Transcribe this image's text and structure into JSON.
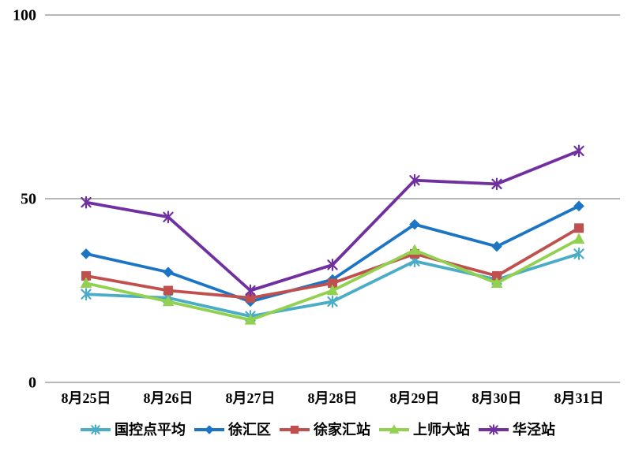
{
  "figure_title": "",
  "axis": {
    "ytick_labels": [
      "0",
      "50",
      "100"
    ],
    "grid_color": "#8c8c8c",
    "text_color": "#000000"
  },
  "chart_data": {
    "type": "line",
    "title": "",
    "xlabel": "",
    "ylabel": "",
    "ylim": [
      0,
      100
    ],
    "yticks": [
      0,
      50,
      100
    ],
    "grid": "horizontal-major",
    "legend_position": "bottom",
    "categories": [
      "8月25日",
      "8月26日",
      "8月27日",
      "8月28日",
      "8月29日",
      "8月30日",
      "8月31日"
    ],
    "series": [
      {
        "name": "国控点平均",
        "color": "#4BACC6",
        "marker": "asterisk",
        "values": [
          24,
          23,
          18,
          22,
          33,
          28,
          35
        ]
      },
      {
        "name": "徐汇区",
        "color": "#1C75C4",
        "marker": "diamond",
        "values": [
          35,
          30,
          22,
          28,
          43,
          37,
          48
        ]
      },
      {
        "name": "徐家汇站",
        "color": "#C0504D",
        "marker": "square",
        "values": [
          29,
          25,
          23,
          27,
          35,
          29,
          42
        ]
      },
      {
        "name": "上师大站",
        "color": "#92D050",
        "marker": "triangle",
        "values": [
          27,
          22,
          17,
          25,
          36,
          27,
          39
        ]
      },
      {
        "name": "华泾站",
        "color": "#7030A0",
        "marker": "asterisk",
        "values": [
          49,
          45,
          25,
          32,
          55,
          54,
          63
        ]
      }
    ]
  }
}
